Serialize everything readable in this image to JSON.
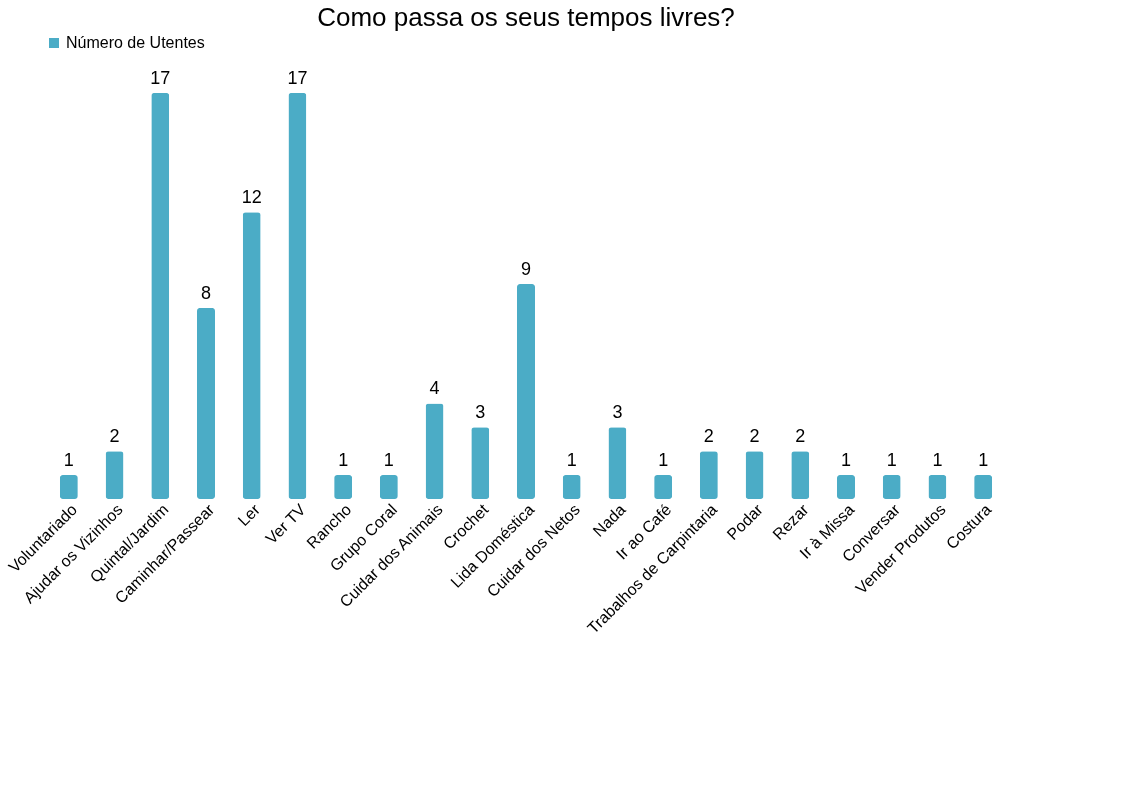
{
  "chart_data": {
    "type": "bar",
    "title": "Como passa os seus tempos livres?",
    "categories": [
      "Voluntariado",
      "Ajudar os Vizinhos",
      "Quintal/Jardim",
      "Caminhar/Passear",
      "Ler",
      "Ver TV",
      "Rancho",
      "Grupo Coral",
      "Cuidar dos Animais",
      "Crochet",
      "Lida Doméstica",
      "Cuidar dos Netos",
      "Nada",
      "Ir ao Café",
      "Trabalhos de Carpintaria",
      "Podar",
      "Rezar",
      "Ir à Missa",
      "Conversar",
      "Vender Produtos",
      "Costura"
    ],
    "series": [
      {
        "name": "Número de Utentes",
        "color": "#4bacc6",
        "values": [
          1,
          2,
          17,
          8,
          12,
          17,
          1,
          1,
          4,
          3,
          9,
          1,
          3,
          1,
          2,
          2,
          2,
          1,
          1,
          1,
          1
        ]
      }
    ],
    "data_labels": true,
    "legend": "top",
    "grid": false
  }
}
